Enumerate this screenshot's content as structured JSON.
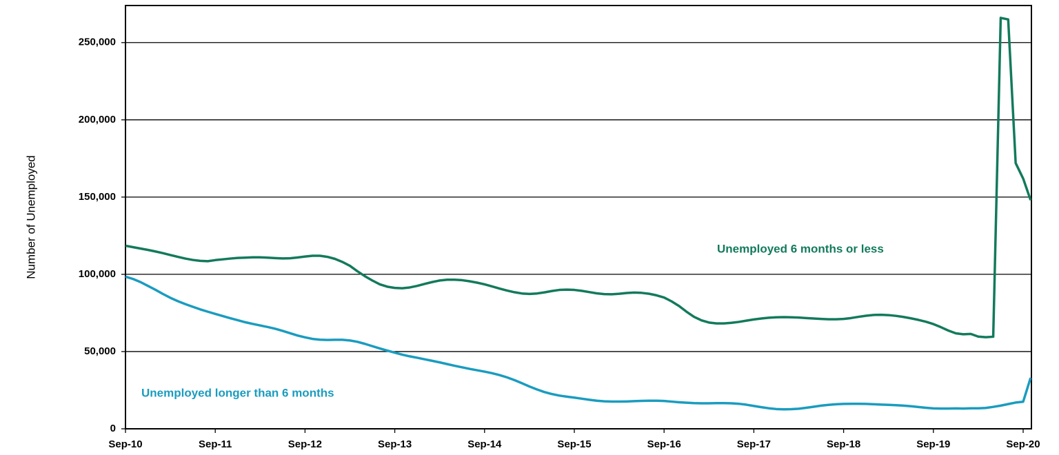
{
  "chart_data": {
    "type": "line",
    "y_label": "Number of Unemployed",
    "categories": [
      "Sep-10",
      null,
      null,
      null,
      null,
      null,
      null,
      null,
      null,
      null,
      null,
      null,
      "Sep-11",
      null,
      null,
      null,
      null,
      null,
      null,
      null,
      null,
      null,
      null,
      null,
      "Sep-12",
      null,
      null,
      null,
      null,
      null,
      null,
      null,
      null,
      null,
      null,
      null,
      "Sep-13",
      null,
      null,
      null,
      null,
      null,
      null,
      null,
      null,
      null,
      null,
      null,
      "Sep-14",
      null,
      null,
      null,
      null,
      null,
      null,
      null,
      null,
      null,
      null,
      null,
      "Sep-15",
      null,
      null,
      null,
      null,
      null,
      null,
      null,
      null,
      null,
      null,
      null,
      "Sep-16",
      null,
      null,
      null,
      null,
      null,
      null,
      null,
      null,
      null,
      null,
      null,
      "Sep-17",
      null,
      null,
      null,
      null,
      null,
      null,
      null,
      null,
      null,
      null,
      null,
      "Sep-18",
      null,
      null,
      null,
      null,
      null,
      null,
      null,
      null,
      null,
      null,
      null,
      "Sep-19",
      null,
      null,
      null,
      null,
      null,
      null,
      null,
      null,
      null,
      null,
      null,
      "Sep-20",
      null
    ],
    "ylim": [
      0,
      274000
    ],
    "yticks": [
      0,
      {
        "value": 50000,
        "label": "50,000"
      },
      {
        "value": 100000,
        "label": "100,000"
      },
      {
        "value": 150000,
        "label": "150,000"
      },
      {
        "value": 200000,
        "label": "200,000"
      },
      {
        "value": 250000,
        "label": "250,000"
      }
    ],
    "grid": true,
    "series": [
      {
        "name": "Unemployed 6 months or less",
        "color": "#137a5c",
        "values": [
          118500,
          117600,
          116700,
          115800,
          114800,
          113700,
          112500,
          111300,
          110200,
          109300,
          108700,
          108500,
          109200,
          109700,
          110200,
          110600,
          110800,
          111000,
          111000,
          110800,
          110500,
          110300,
          110400,
          110900,
          111500,
          112000,
          112000,
          111300,
          110000,
          108000,
          105500,
          102000,
          98800,
          96000,
          93500,
          92000,
          91200,
          91000,
          91500,
          92500,
          93800,
          95000,
          96000,
          96500,
          96500,
          96200,
          95500,
          94600,
          93500,
          92200,
          90800,
          89500,
          88400,
          87600,
          87300,
          87600,
          88300,
          89200,
          89900,
          90100,
          89900,
          89300,
          88500,
          87700,
          87200,
          87100,
          87400,
          87900,
          88200,
          88000,
          87400,
          86400,
          85000,
          82500,
          79500,
          75800,
          72500,
          70200,
          68800,
          68200,
          68200,
          68600,
          69200,
          70000,
          70800,
          71400,
          71900,
          72200,
          72300,
          72200,
          72000,
          71700,
          71400,
          71100,
          70900,
          70900,
          71100,
          71700,
          72500,
          73200,
          73700,
          73800,
          73600,
          73100,
          72400,
          71500,
          70500,
          69300,
          67800,
          65800,
          63600,
          61800,
          61200,
          61400,
          59700,
          59300,
          59600,
          266000,
          265000,
          172000,
          162000,
          148000
        ]
      },
      {
        "name": "Unemployed longer than 6 months",
        "color": "#1a9cbf",
        "values": [
          98500,
          97000,
          95000,
          92500,
          90000,
          87300,
          84800,
          82600,
          80700,
          79000,
          77300,
          75800,
          74400,
          73000,
          71600,
          70300,
          69000,
          67900,
          66900,
          65900,
          64800,
          63400,
          61900,
          60400,
          59200,
          58200,
          57700,
          57500,
          57600,
          57600,
          57200,
          56300,
          55000,
          53500,
          52000,
          50600,
          49300,
          48000,
          46900,
          46000,
          45000,
          44000,
          43000,
          41900,
          40800,
          39800,
          38800,
          37900,
          37000,
          36000,
          34800,
          33300,
          31500,
          29500,
          27400,
          25500,
          23800,
          22500,
          21500,
          20800,
          20200,
          19500,
          18800,
          18200,
          17800,
          17600,
          17600,
          17700,
          17900,
          18100,
          18200,
          18200,
          18000,
          17600,
          17200,
          16900,
          16600,
          16500,
          16500,
          16600,
          16600,
          16500,
          16200,
          15600,
          14800,
          14000,
          13300,
          12800,
          12600,
          12700,
          13000,
          13600,
          14300,
          15000,
          15500,
          15900,
          16100,
          16200,
          16200,
          16100,
          15900,
          15700,
          15500,
          15300,
          15000,
          14600,
          14100,
          13600,
          13200,
          13100,
          13100,
          13200,
          13100,
          13300,
          13300,
          13500,
          14200,
          15000,
          16000,
          17000,
          17500,
          33000
        ]
      }
    ]
  }
}
